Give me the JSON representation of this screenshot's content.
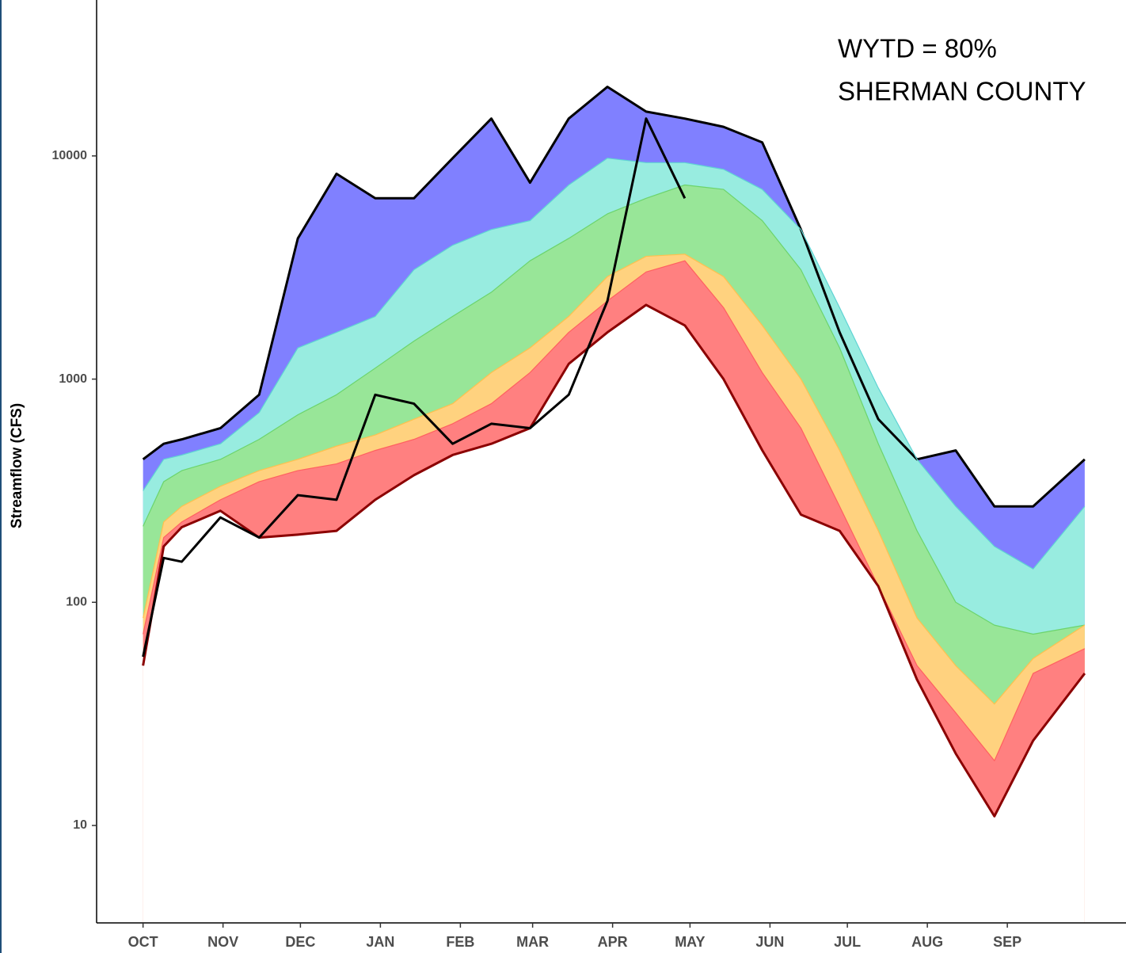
{
  "chart_data": {
    "type": "area",
    "ylabel": "Streamflow (CFS)",
    "annotations": [
      "WYTD = 80%",
      "SHERMAN COUNTY"
    ],
    "log_scale": true,
    "grid": false,
    "xlim": [
      -18,
      381
    ],
    "ylim": [
      3.66,
      46800
    ],
    "yticks": [
      10,
      100,
      1000,
      10000
    ],
    "xticks": [
      {
        "value": 0,
        "label": "OCT"
      },
      {
        "value": 31,
        "label": "NOV"
      },
      {
        "value": 61,
        "label": "DEC"
      },
      {
        "value": 92,
        "label": "JAN"
      },
      {
        "value": 123,
        "label": "FEB"
      },
      {
        "value": 151,
        "label": "MAR"
      },
      {
        "value": 182,
        "label": "APR"
      },
      {
        "value": 212,
        "label": "MAY"
      },
      {
        "value": 243,
        "label": "JUN"
      },
      {
        "value": 273,
        "label": "JUL"
      },
      {
        "value": 304,
        "label": "AUG"
      },
      {
        "value": 335,
        "label": "SEP"
      }
    ],
    "x": [
      0,
      8,
      15,
      30,
      45,
      60,
      75,
      90,
      105,
      120,
      135,
      150,
      165,
      180,
      195,
      210,
      225,
      240,
      255,
      270,
      285,
      300,
      315,
      330,
      345,
      365
    ],
    "series": [
      {
        "fill": "#8080ff",
        "line": "#000000",
        "values": [
          437,
          513,
          537,
          603,
          851,
          4270,
          8320,
          6460,
          6460,
          9770,
          14700,
          7590,
          14700,
          20400,
          15800,
          14700,
          13500,
          11500,
          4680,
          1620,
          661,
          437,
          479,
          269,
          269,
          437
        ]
      },
      {
        "fill": "#98ece0",
        "line": "#5fd3d3",
        "values": [
          316,
          437,
          457,
          513,
          708,
          1380,
          1620,
          1910,
          3090,
          3980,
          4680,
          5130,
          7410,
          9770,
          9330,
          9330,
          8710,
          7080,
          4680,
          2090,
          912,
          437,
          269,
          178,
          141,
          269
        ]
      },
      {
        "fill": "#98e698",
        "line": "#6cd46c",
        "values": [
          219,
          347,
          389,
          437,
          537,
          692,
          851,
          1120,
          1480,
          1910,
          2450,
          3390,
          4270,
          5500,
          6460,
          7410,
          7080,
          5130,
          3090,
          1380,
          513,
          209,
          100,
          79,
          72,
          79
        ]
      },
      {
        "fill": "#ffd27f",
        "line": "#ffc04d",
        "values": [
          85,
          229,
          269,
          331,
          389,
          437,
          501,
          562,
          661,
          776,
          1070,
          1380,
          1910,
          2880,
          3550,
          3630,
          2880,
          1740,
          1000,
          479,
          209,
          85,
          52,
          35,
          56,
          79
        ]
      },
      {
        "fill": "#ff8080",
        "line": "#ff6060",
        "values": [
          72,
          195,
          229,
          288,
          347,
          389,
          417,
          479,
          537,
          631,
          776,
          1070,
          1620,
          2240,
          3020,
          3390,
          2090,
          1070,
          603,
          269,
          118,
          52,
          32,
          19.5,
          48,
          62
        ]
      },
      {
        "fill": "#ffffff",
        "line": "#8b0000",
        "values": [
          52,
          178,
          217,
          257,
          195,
          201,
          209,
          288,
          371,
          457,
          513,
          603,
          1170,
          1620,
          2150,
          1740,
          1000,
          480,
          247,
          209,
          118,
          45,
          21,
          11,
          24,
          48
        ]
      },
      {
        "fill": null,
        "line": "#000000",
        "values": [
          57,
          158,
          152,
          240,
          195,
          302,
          288,
          851,
          776,
          513,
          631,
          603,
          851,
          2240,
          14700,
          6460,
          null,
          null,
          null,
          null,
          null,
          null,
          null,
          null,
          null,
          null
        ]
      }
    ]
  }
}
